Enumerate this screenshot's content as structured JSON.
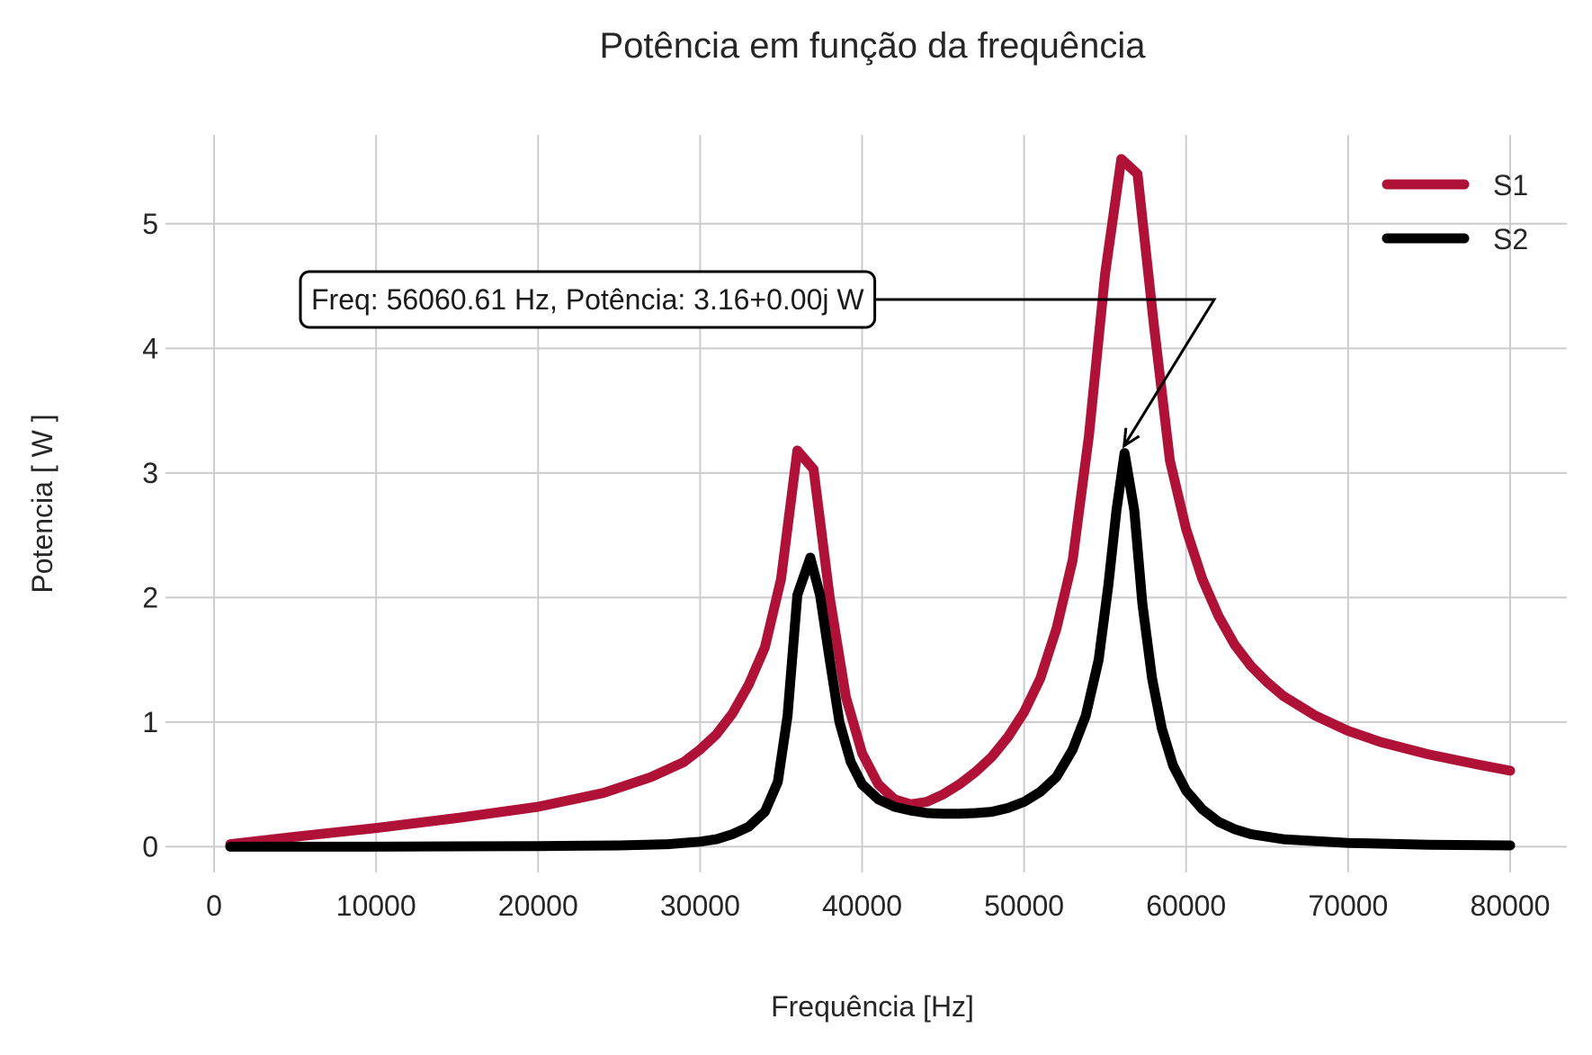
{
  "chart_data": {
    "type": "line",
    "title": "Potência em função da frequência",
    "xlabel": "Frequência [Hz]",
    "ylabel": "Potencia [ W ]",
    "xlim": [
      -3000,
      83500
    ],
    "ylim": [
      -0.25,
      5.8
    ],
    "xticks": [
      0,
      10000,
      20000,
      30000,
      40000,
      50000,
      60000,
      70000,
      80000
    ],
    "yticks": [
      0,
      1,
      2,
      3,
      4,
      5
    ],
    "grid": true,
    "legend_position": "top-right",
    "series": [
      {
        "name": "S1",
        "color": "#b01237",
        "x": [
          1000,
          5000,
          10000,
          15000,
          20000,
          24000,
          27000,
          29000,
          30000,
          31000,
          32000,
          33000,
          34000,
          35000,
          36000,
          37000,
          38000,
          39000,
          40000,
          41000,
          42000,
          43000,
          44000,
          45000,
          46000,
          47000,
          48000,
          49000,
          50000,
          51000,
          52000,
          53000,
          54000,
          55000,
          56000,
          57000,
          58000,
          59000,
          60000,
          61000,
          62000,
          63000,
          64000,
          65000,
          66000,
          68000,
          70000,
          72000,
          75000,
          78000,
          80000
        ],
        "y": [
          0.02,
          0.08,
          0.15,
          0.23,
          0.32,
          0.43,
          0.56,
          0.68,
          0.78,
          0.9,
          1.07,
          1.3,
          1.6,
          2.15,
          3.18,
          3.03,
          2.0,
          1.2,
          0.75,
          0.5,
          0.38,
          0.34,
          0.36,
          0.42,
          0.5,
          0.6,
          0.72,
          0.88,
          1.08,
          1.35,
          1.75,
          2.3,
          3.3,
          4.6,
          5.52,
          5.4,
          4.2,
          3.1,
          2.55,
          2.15,
          1.85,
          1.62,
          1.45,
          1.32,
          1.21,
          1.05,
          0.93,
          0.84,
          0.74,
          0.66,
          0.61
        ]
      },
      {
        "name": "S2",
        "color": "#000000",
        "x": [
          1000,
          10000,
          20000,
          25000,
          28000,
          30000,
          31000,
          32000,
          33000,
          34000,
          34800,
          35400,
          36000,
          36800,
          37400,
          38000,
          38600,
          39300,
          40000,
          41000,
          42000,
          43000,
          44000,
          45000,
          46000,
          47000,
          48000,
          49000,
          50000,
          51000,
          52000,
          53000,
          53800,
          54600,
          55200,
          55700,
          56200,
          56800,
          57300,
          57900,
          58500,
          59200,
          60000,
          61000,
          62000,
          63000,
          64000,
          66000,
          70000,
          75000,
          80000
        ],
        "y": [
          0.0,
          0.0,
          0.005,
          0.01,
          0.02,
          0.04,
          0.06,
          0.1,
          0.16,
          0.28,
          0.52,
          1.05,
          2.02,
          2.32,
          2.02,
          1.5,
          1.0,
          0.68,
          0.5,
          0.38,
          0.32,
          0.29,
          0.27,
          0.265,
          0.265,
          0.27,
          0.28,
          0.31,
          0.36,
          0.44,
          0.56,
          0.78,
          1.05,
          1.5,
          2.1,
          2.7,
          3.16,
          2.7,
          1.95,
          1.35,
          0.95,
          0.65,
          0.45,
          0.3,
          0.2,
          0.14,
          0.1,
          0.06,
          0.03,
          0.015,
          0.01
        ]
      }
    ],
    "annotation": {
      "text": "Freq: 56060.61 Hz, Potência: 3.16+0.00j W",
      "point": {
        "x": 56060.61,
        "y": 3.16
      }
    }
  }
}
